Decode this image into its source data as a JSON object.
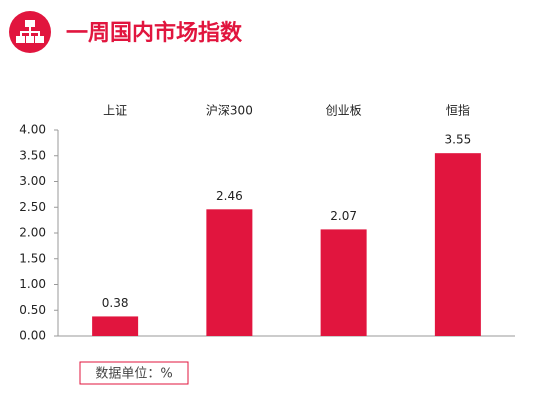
{
  "chart_data": {
    "type": "bar",
    "title": "一周国内市场指数",
    "categories": [
      "上证",
      "沪深300",
      "创业板",
      "恒指"
    ],
    "values": [
      0.38,
      2.46,
      2.07,
      3.55
    ],
    "color": "#e1153e",
    "ylim": [
      0,
      4
    ],
    "yticks": [
      {
        "value": 0,
        "label": "0.00"
      },
      {
        "value": 0.5,
        "label": "0.50"
      },
      {
        "value": 1,
        "label": "1.00"
      },
      {
        "value": 1.5,
        "label": "1.50"
      },
      {
        "value": 2,
        "label": "2.00"
      },
      {
        "value": 2.5,
        "label": "2.50"
      },
      {
        "value": 3,
        "label": "3.00"
      },
      {
        "value": 3.5,
        "label": "3.50"
      },
      {
        "value": 4,
        "label": "4.00"
      }
    ],
    "unit_note": "数据单位：%"
  }
}
